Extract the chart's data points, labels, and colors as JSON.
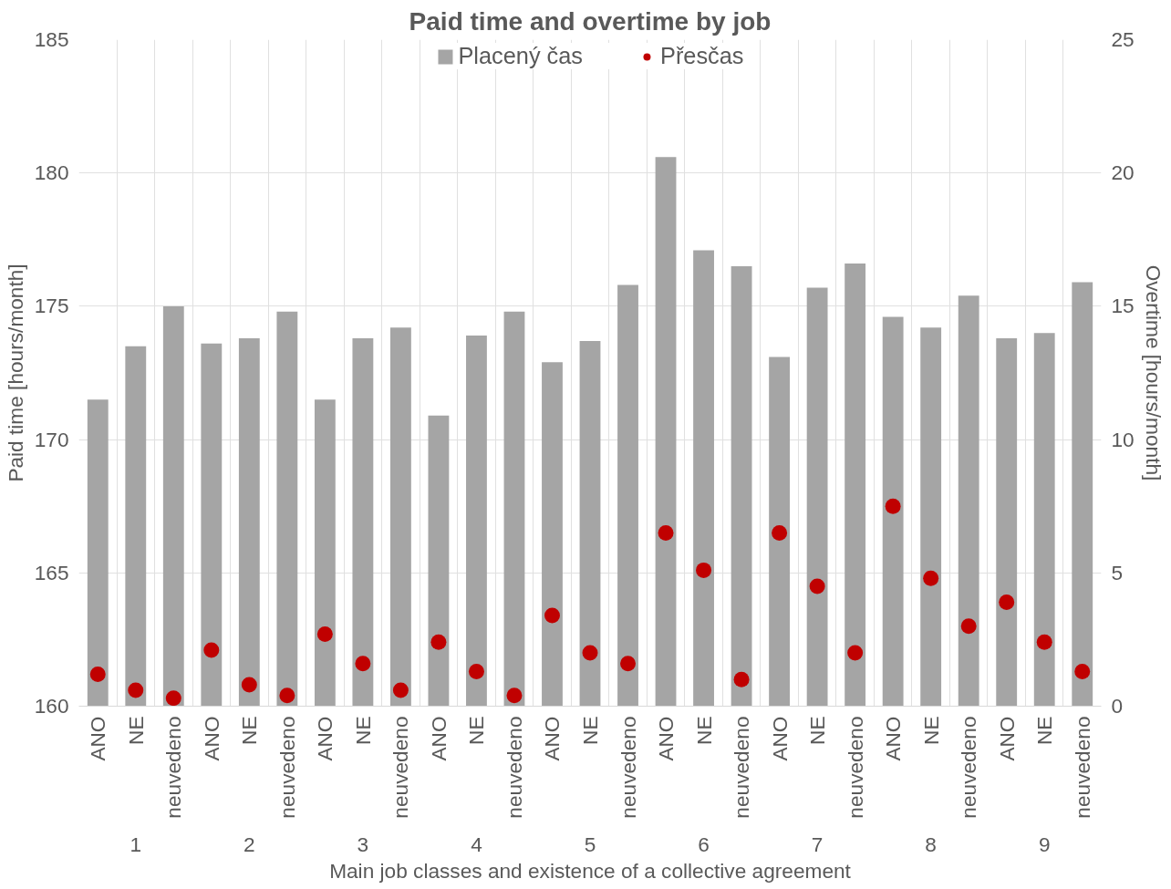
{
  "chart_data": {
    "type": "bar",
    "title": "Paid time and overtime by job",
    "xlabel": "Main job classes and existence of a collective agreement",
    "ylabel": "Paid time [hours/month]",
    "y2label": "Overtime [hours/month]",
    "categories": [
      "ANO",
      "NE",
      "neuvedeno",
      "ANO",
      "NE",
      "neuvedeno",
      "ANO",
      "NE",
      "neuvedeno",
      "ANO",
      "NE",
      "neuvedeno",
      "ANO",
      "NE",
      "neuvedeno",
      "ANO",
      "NE",
      "neuvedeno",
      "ANO",
      "NE",
      "neuvedeno",
      "ANO",
      "NE",
      "neuvedeno",
      "ANO",
      "NE",
      "neuvedeno"
    ],
    "annotations": [
      "1",
      "2",
      "3",
      "4",
      "5",
      "6",
      "7",
      "8",
      "9"
    ],
    "series": [
      {
        "name": "Placený čas",
        "color": "#a5a5a5",
        "values": [
          171.5,
          173.5,
          175.0,
          173.6,
          173.8,
          174.8,
          171.5,
          173.8,
          174.2,
          170.9,
          173.9,
          174.8,
          172.9,
          173.7,
          175.8,
          180.6,
          177.1,
          176.5,
          173.1,
          175.7,
          176.6,
          174.6,
          174.2,
          175.4,
          173.8,
          174.0,
          175.9
        ]
      },
      {
        "name": "Přesčas",
        "type": "scatter",
        "axis": "y2",
        "marker": "circle",
        "color": "#c00000",
        "values": [
          1.2,
          0.6,
          0.3,
          2.1,
          0.8,
          0.4,
          2.7,
          1.6,
          0.6,
          2.4,
          1.3,
          0.4,
          3.4,
          2.0,
          1.6,
          6.5,
          5.1,
          1.0,
          6.5,
          4.5,
          2.0,
          7.5,
          4.8,
          3.0,
          3.9,
          2.4,
          1.3
        ]
      }
    ],
    "ylim": [
      160,
      185
    ],
    "yticks": [
      160,
      165,
      170,
      175,
      180,
      185
    ],
    "y2lim": [
      0,
      25
    ],
    "y2ticks": [
      0,
      5,
      10,
      15,
      20,
      25
    ],
    "grid": true,
    "legend": "top"
  }
}
